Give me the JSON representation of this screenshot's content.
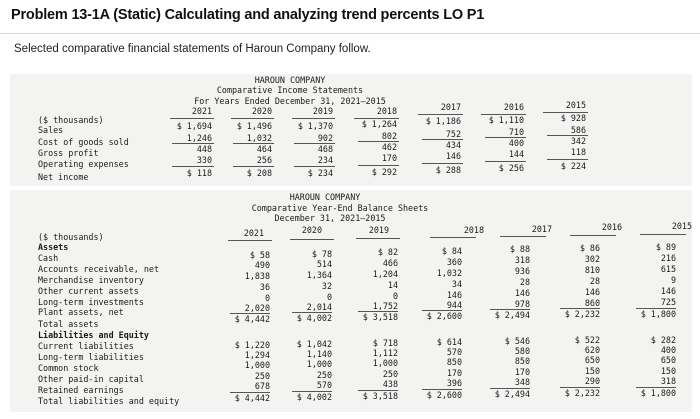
{
  "problem": {
    "title": "Problem 13-1A (Static) Calculating and analyzing trend percents LO P1",
    "intro": "Selected comparative financial statements of Haroun Company follow."
  },
  "income_statement": {
    "heading": [
      "HAROUN COMPANY",
      "Comparative Income Statements",
      "For Years Ended December 31, 2021–2015"
    ],
    "unit_label": "($ thousands)",
    "years": [
      "2021",
      "2020",
      "2019",
      "2018",
      "2017",
      "2016",
      "2015"
    ],
    "rows": [
      {
        "label": "Sales",
        "values": [
          "$ 1,694",
          "$ 1,496",
          "$ 1,370",
          "$ 1,264",
          "$ 1,186",
          "$ 1,110",
          "$ 928"
        ]
      },
      {
        "label": "Cost of goods sold",
        "values": [
          "1,246",
          "1,032",
          "902",
          "802",
          "752",
          "710",
          "586"
        ]
      },
      {
        "label": "Gross profit",
        "values": [
          "448",
          "464",
          "468",
          "462",
          "434",
          "400",
          "342"
        ]
      },
      {
        "label": "Operating expenses",
        "values": [
          "330",
          "256",
          "234",
          "170",
          "146",
          "144",
          "118"
        ]
      },
      {
        "label": "Net income",
        "values": [
          "$ 118",
          "$ 208",
          "$ 234",
          "$ 292",
          "$ 288",
          "$ 256",
          "$ 224"
        ]
      }
    ]
  },
  "balance_sheet": {
    "heading": [
      "HAROUN COMPANY",
      "Comparative Year-End Balance Sheets",
      "December 31, 2021–2015"
    ],
    "unit_label": "($ thousands)",
    "years": [
      "2021",
      "2020",
      "2019",
      "2018",
      "2017",
      "2016",
      "2015"
    ],
    "section_assets": "Assets",
    "asset_rows": [
      {
        "label": "Cash",
        "values": [
          "$ 58",
          "$ 78",
          "$ 82",
          "$ 84",
          "$ 88",
          "$ 86",
          "$ 89"
        ]
      },
      {
        "label": "Accounts receivable, net",
        "values": [
          "490",
          "514",
          "466",
          "360",
          "318",
          "302",
          "216"
        ]
      },
      {
        "label": "Merchandise inventory",
        "values": [
          "1,838",
          "1,364",
          "1,204",
          "1,032",
          "936",
          "810",
          "615"
        ]
      },
      {
        "label": "Other current assets",
        "values": [
          "36",
          "32",
          "14",
          "34",
          "28",
          "28",
          "9"
        ]
      },
      {
        "label": "Long-term investments",
        "values": [
          "0",
          "0",
          "0",
          "146",
          "146",
          "146",
          "146"
        ]
      },
      {
        "label": "Plant assets, net",
        "values": [
          "2,020",
          "2,014",
          "1,752",
          "944",
          "978",
          "860",
          "725"
        ]
      }
    ],
    "total_assets": {
      "label": "Total assets",
      "values": [
        "$ 4,442",
        "$ 4,002",
        "$ 3,518",
        "$ 2,600",
        "$ 2,494",
        "$ 2,232",
        "$ 1,800"
      ]
    },
    "section_liabilities": "Liabilities and Equity",
    "liability_rows": [
      {
        "label": "Current liabilities",
        "values": [
          "$ 1,220",
          "$ 1,042",
          "$ 718",
          "$ 614",
          "$ 546",
          "$ 522",
          "$ 282"
        ]
      },
      {
        "label": "Long-term liabilities",
        "values": [
          "1,294",
          "1,140",
          "1,112",
          "570",
          "580",
          "620",
          "400"
        ]
      },
      {
        "label": "Common stock",
        "values": [
          "1,000",
          "1,000",
          "1,000",
          "850",
          "850",
          "650",
          "650"
        ]
      },
      {
        "label": "Other paid-in capital",
        "values": [
          "250",
          "250",
          "250",
          "170",
          "170",
          "150",
          "150"
        ]
      },
      {
        "label": "Retained earnings",
        "values": [
          "678",
          "570",
          "438",
          "396",
          "348",
          "290",
          "318"
        ]
      }
    ],
    "total_liabilities_equity": {
      "label": "Total liabilities and equity",
      "values": [
        "$ 4,442",
        "$ 4,002",
        "$ 3,518",
        "$ 2,600",
        "$ 2,494",
        "$ 2,232",
        "$ 1,800"
      ]
    }
  }
}
